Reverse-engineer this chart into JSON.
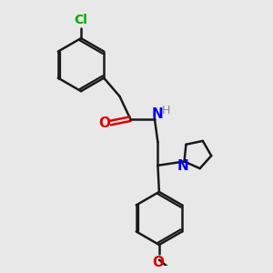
{
  "bg_color": "#e8e8e8",
  "bond_color": "#1a1a1a",
  "line_width": 1.8,
  "cl_color": "#00aa00",
  "o_color": "#dd0000",
  "n_color": "#0000ee",
  "h_color": "#888888",
  "figsize": [
    3.0,
    3.0
  ],
  "dpi": 100,
  "xlim": [
    0,
    10
  ],
  "ylim": [
    0,
    10
  ]
}
